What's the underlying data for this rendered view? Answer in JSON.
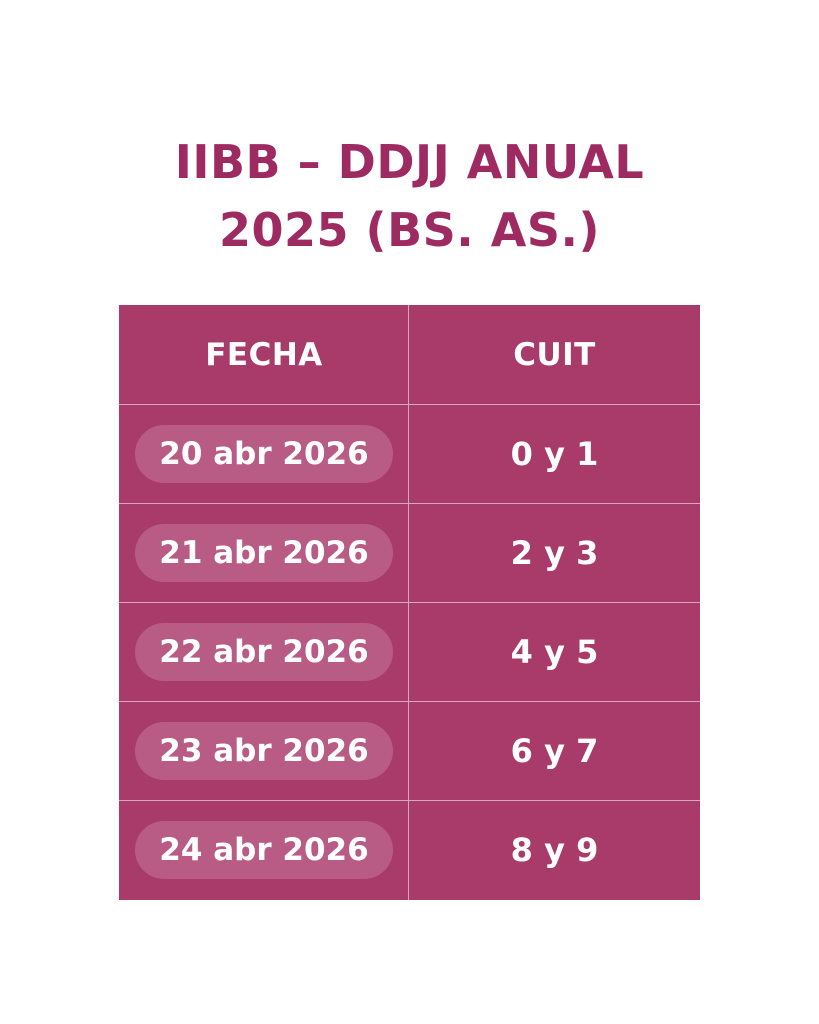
{
  "title": {
    "line1": "IIBB – DDJJ ANUAL",
    "line2": "2025 (BS. AS.)"
  },
  "table": {
    "headers": {
      "fecha": "FECHA",
      "cuit": "CUIT"
    },
    "rows": [
      {
        "fecha": "20 abr 2026",
        "cuit": "0 y 1"
      },
      {
        "fecha": "21 abr 2026",
        "cuit": "2 y 3"
      },
      {
        "fecha": "22 abr 2026",
        "cuit": "4 y 5"
      },
      {
        "fecha": "23 abr 2026",
        "cuit": "6 y 7"
      },
      {
        "fecha": "24 abr 2026",
        "cuit": "8 y 9"
      }
    ]
  },
  "colors": {
    "title": "#9e2a62",
    "table_bg": "#a83b69",
    "pill_bg": "#b95c85",
    "grid_line": "#d9a5bd",
    "text": "#ffffff"
  }
}
